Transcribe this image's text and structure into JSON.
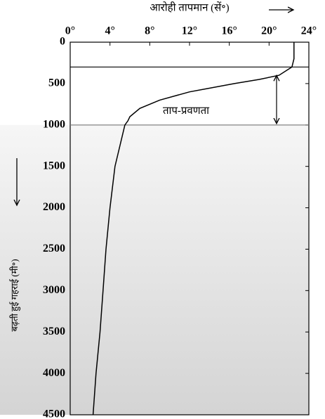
{
  "chart_data": {
    "type": "line",
    "title": "आरोही तापमान (सें॰)",
    "y_label": "बढ़ती हुई गहराई (मी॰)",
    "annotation": "ताप-प्रवणता",
    "depth": [
      0,
      200,
      300,
      400,
      450,
      500,
      600,
      700,
      800,
      900,
      950,
      1000,
      1500,
      2000,
      2500,
      3000,
      3500,
      4000,
      4500
    ],
    "values": [
      22.5,
      22.5,
      22.3,
      21,
      19,
      16.5,
      12,
      9,
      7,
      6,
      5.8,
      5.5,
      4.5,
      4,
      3.6,
      3.3,
      3,
      2.6,
      2.3
    ],
    "color": "#000000",
    "layer_boundaries": [
      300,
      1000
    ],
    "xlim": [
      0,
      24
    ],
    "xticks": [
      {
        "value": 0,
        "label": "0°"
      },
      {
        "value": 4,
        "label": "4°"
      },
      {
        "value": 8,
        "label": "8°"
      },
      {
        "value": 12,
        "label": "12°"
      },
      {
        "value": 16,
        "label": "16°"
      },
      {
        "value": 20,
        "label": "20°"
      },
      {
        "value": 24,
        "label": "24°"
      }
    ],
    "ylim": [
      0,
      4500
    ],
    "yticks": [
      0,
      500,
      1000,
      1500,
      2000,
      2500,
      3000,
      3500,
      4000,
      4500
    ]
  }
}
